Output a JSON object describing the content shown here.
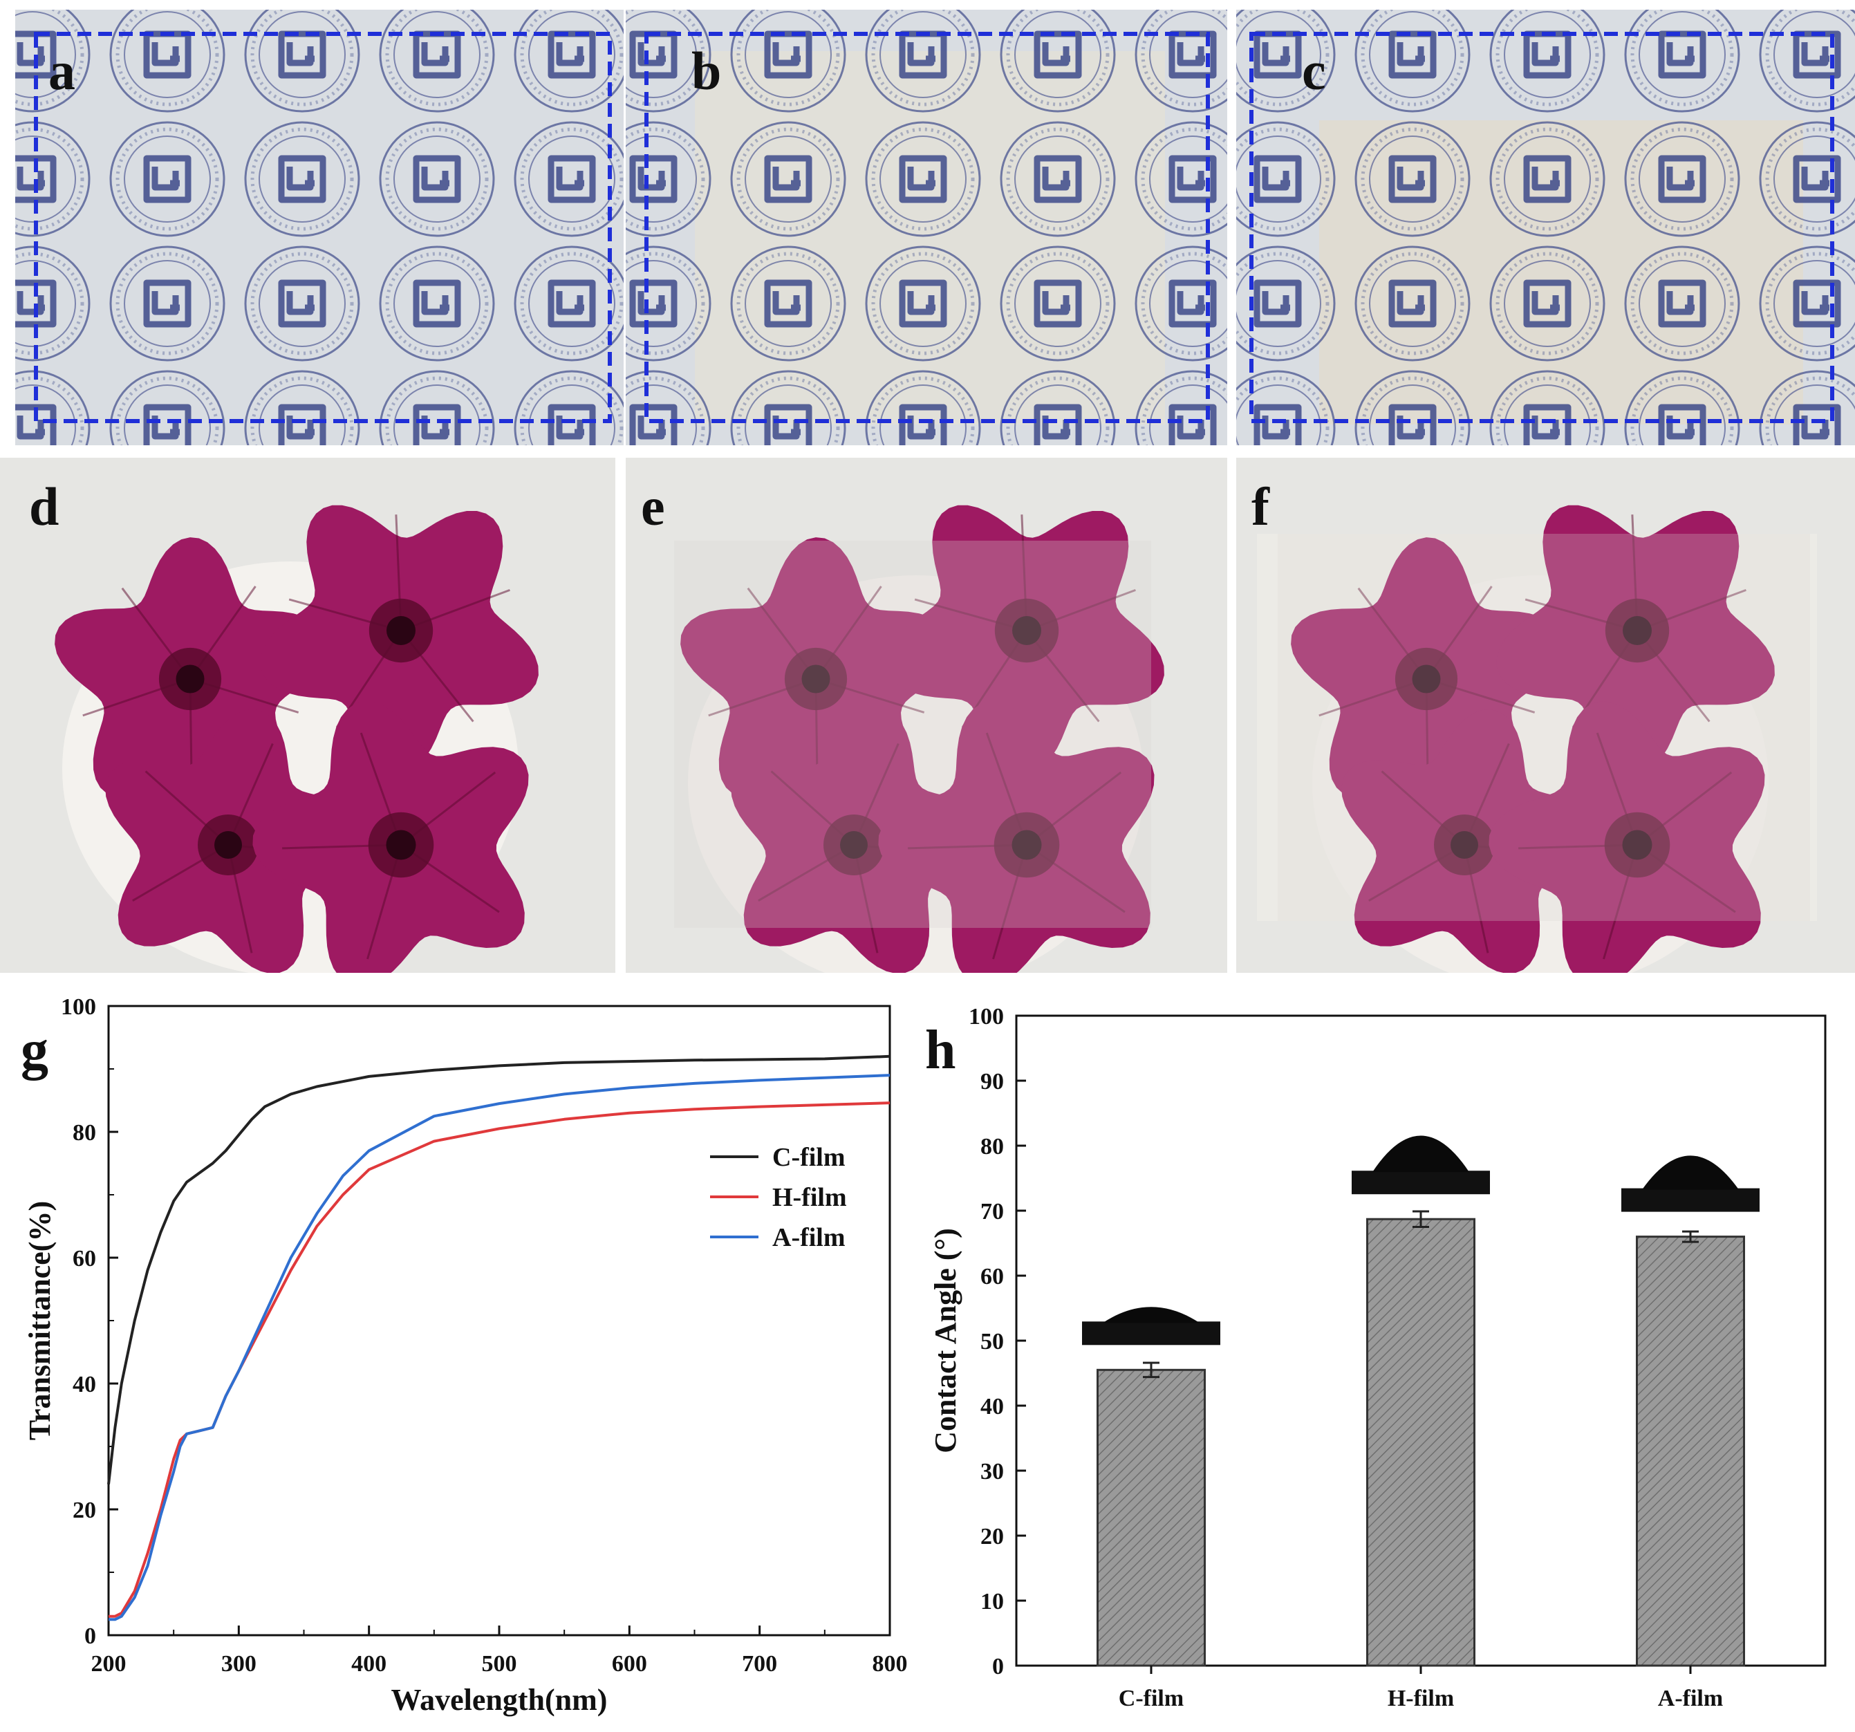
{
  "panels": {
    "a": "a",
    "b": "b",
    "c": "c",
    "d": "d",
    "e": "e",
    "f": "f",
    "g": "g",
    "h": "h"
  },
  "colors": {
    "dashed_box": "#1f2fd8",
    "seal_ink": "#3d4a8a",
    "petal": "#9e1a62",
    "petal_dark": "#5c0a2e",
    "c_film": "#222222",
    "h_film": "#e0393b",
    "a_film": "#2f6fd0",
    "bar_fill": "#9a9a9a"
  },
  "chart_data": [
    {
      "type": "line",
      "panel": "g",
      "xlabel": "Wavelength(nm)",
      "ylabel": "Transmittance(%)",
      "xlim": [
        200,
        800
      ],
      "ylim": [
        0,
        100
      ],
      "xticks": [
        200,
        300,
        400,
        500,
        600,
        700,
        800
      ],
      "yticks": [
        0,
        20,
        40,
        60,
        80,
        100
      ],
      "legend_position": "right",
      "series": [
        {
          "name": "C-film",
          "color": "#222222",
          "x": [
            200,
            205,
            210,
            220,
            230,
            240,
            250,
            260,
            270,
            280,
            290,
            300,
            310,
            320,
            340,
            360,
            380,
            400,
            450,
            500,
            550,
            600,
            650,
            700,
            750,
            800
          ],
          "y": [
            24,
            33,
            40,
            50,
            58,
            64,
            69,
            72,
            73.5,
            75,
            77,
            79.5,
            82,
            84,
            86,
            87.2,
            88,
            88.8,
            89.8,
            90.5,
            91,
            91.2,
            91.4,
            91.5,
            91.6,
            92
          ]
        },
        {
          "name": "H-film",
          "color": "#e0393b",
          "x": [
            200,
            205,
            210,
            220,
            230,
            240,
            250,
            255,
            260,
            270,
            280,
            290,
            300,
            320,
            340,
            360,
            380,
            400,
            450,
            500,
            550,
            600,
            650,
            700,
            750,
            800
          ],
          "y": [
            3,
            3,
            3.5,
            7,
            13,
            20,
            28,
            31,
            32,
            32.5,
            33,
            38,
            42,
            50,
            58,
            65,
            70,
            74,
            78.5,
            80.5,
            82,
            83,
            83.6,
            84,
            84.3,
            84.6
          ]
        },
        {
          "name": "A-film",
          "color": "#2f6fd0",
          "x": [
            200,
            205,
            210,
            220,
            230,
            240,
            250,
            255,
            260,
            270,
            280,
            290,
            300,
            320,
            340,
            360,
            380,
            400,
            450,
            500,
            550,
            600,
            650,
            700,
            750,
            800
          ],
          "y": [
            2.5,
            2.5,
            3,
            6,
            11,
            19,
            26,
            30,
            32,
            32.5,
            33,
            38,
            42,
            51,
            60,
            67,
            73,
            77,
            82.5,
            84.5,
            86,
            87,
            87.7,
            88.2,
            88.6,
            89
          ]
        }
      ]
    },
    {
      "type": "bar",
      "panel": "h",
      "xlabel": "",
      "ylabel": "Contact Angle (°)",
      "ylim": [
        0,
        100
      ],
      "yticks": [
        0,
        10,
        20,
        30,
        40,
        50,
        60,
        70,
        80,
        90,
        100
      ],
      "categories": [
        "C-film",
        "H-film",
        "A-film"
      ],
      "values": [
        45.5,
        68.7,
        66.0
      ],
      "errors": [
        1.1,
        1.2,
        0.8
      ]
    }
  ]
}
